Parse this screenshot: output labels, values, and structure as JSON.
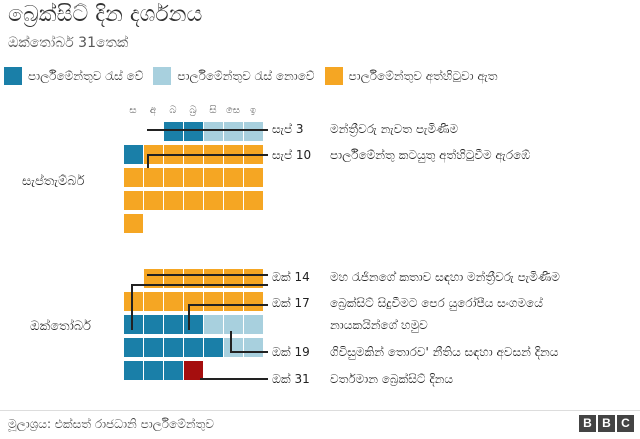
{
  "title": "බ්‍රෙක්සිට් දින දර්ශනය",
  "subtitle": "ඔක්තෝබර් 31තෙක්",
  "legend": [
    {
      "label": "පාර්ලිමේන්තුව රැස් වේ",
      "color": "#1a7fa8"
    },
    {
      "label": "පාර්ලිමේන්තුව රැස් නොවේ",
      "color": "#a8d0de"
    },
    {
      "label": "පාර්ලිමේන්තුව අත්හිටුවා ඇත",
      "color": "#f5a623"
    }
  ],
  "highlight_color": "#a50e0e",
  "day_headers": [
    "ස",
    "අ",
    "බ",
    "බ්‍ර",
    "සි",
    "සෙ",
    "ඉ"
  ],
  "months": {
    "september": "සැප්තැම්බර්",
    "october": "ඔක්තෝබර්"
  },
  "calendar": {
    "september_rows": [
      [
        "",
        "",
        "M",
        "M",
        "L",
        "L",
        "L"
      ],
      [
        "M",
        "S",
        "S",
        "S",
        "S",
        "S",
        "S"
      ],
      [
        "S",
        "S",
        "S",
        "S",
        "S",
        "S",
        "S"
      ],
      [
        "S",
        "S",
        "S",
        "S",
        "S",
        "S",
        "S"
      ],
      [
        "S",
        "",
        "",
        "",
        "",
        "",
        ""
      ]
    ],
    "october_rows": [
      [
        "",
        "S",
        "S",
        "S",
        "S",
        "S",
        "S"
      ],
      [
        "S",
        "S",
        "S",
        "S",
        "S",
        "S",
        "S"
      ],
      [
        "M",
        "M",
        "M",
        "M",
        "L",
        "L",
        "L"
      ],
      [
        "M",
        "M",
        "M",
        "M",
        "M",
        "L",
        "L"
      ],
      [
        "M",
        "M",
        "M",
        "X",
        "",
        "",
        ""
      ]
    ]
  },
  "annotations": [
    {
      "date": "සැප් 3",
      "text": "මන්ත්‍රීවරු නැවත පැමිණීම"
    },
    {
      "date": "සැප් 10",
      "text": "පාර්ලිමේන්තු කටයුතු අත්හිටුවීම ඇරඹේ"
    },
    {
      "date": "ඔක් 14",
      "text": "මහ රැජිනගේ කතාව සඳහා මන්ත්‍රීවරු පැමිණීම"
    },
    {
      "date": "ඔක් 17",
      "text": "බ්‍රෙක්සිට් සිදුවීමට පෙර යුරෝපීය සංගමයේ",
      "text2": "නායකයින්ගේ හමුව"
    },
    {
      "date": "ඔක් 19",
      "text": "ගිවිසුමකින් තොරව' නීතිය සඳහා අවසන් දිනය"
    },
    {
      "date": "ඔක් 31",
      "text": "වර්තමාන බ්‍රෙක්සිට් දිනය"
    }
  ],
  "source": "මූලාශ්‍රය: එක්සත් රාජධානි පාර්ලිමේන්තුව",
  "logo": [
    "B",
    "B",
    "C"
  ]
}
